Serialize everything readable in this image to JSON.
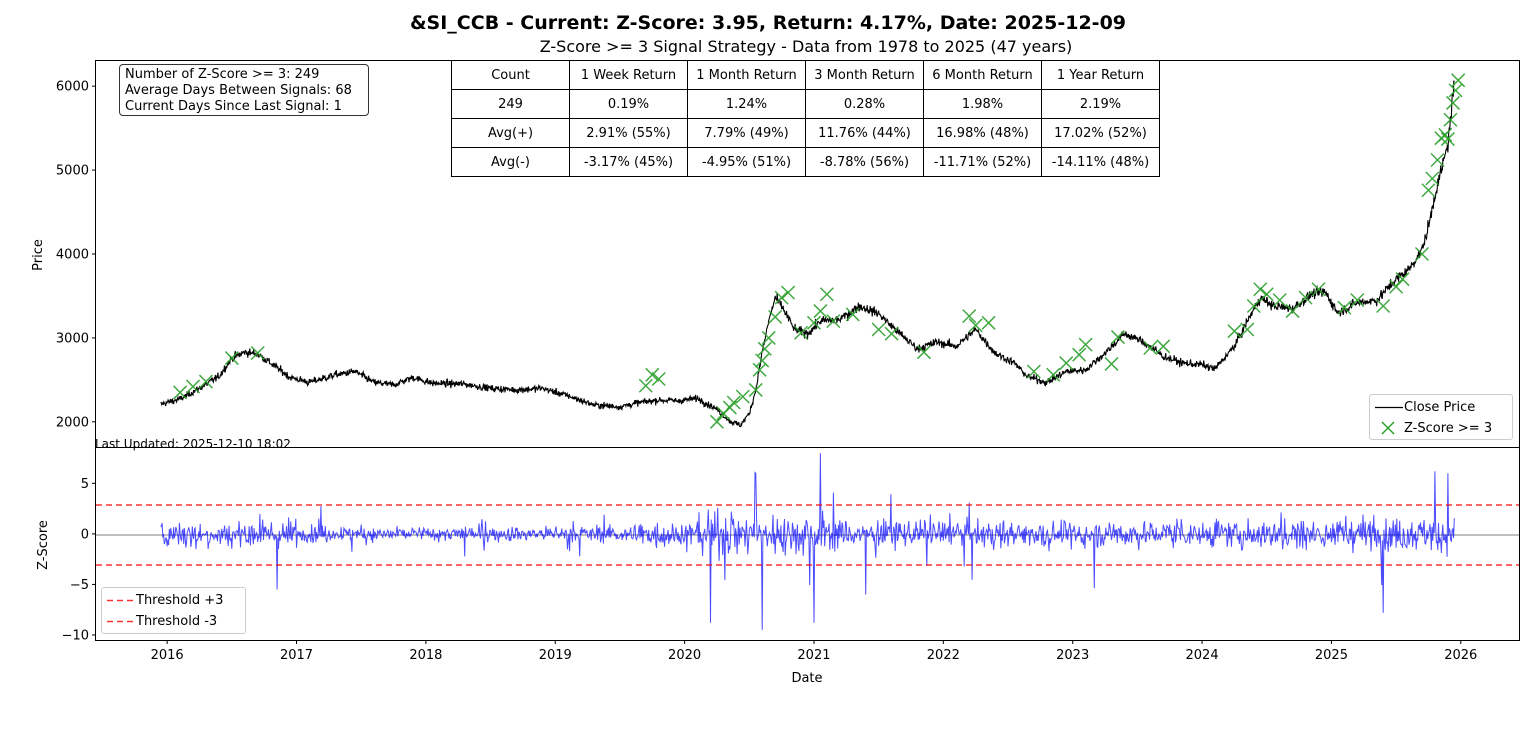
{
  "title": "&SI_CCB - Current: Z-Score: 3.95, Return: 4.17%, Date: 2025-12-09",
  "subtitle": "Z-Score >= 3 Signal Strategy - Data from 1978 to 2025 (47 years)",
  "info_box": {
    "line1": "Number of Z-Score >= 3: 249",
    "line2": "Average Days Between Signals: 68",
    "line3": "Current Days Since Last Signal: 1"
  },
  "stats_table": {
    "header": [
      "Count",
      "1 Week Return",
      "1 Month Return",
      "3 Month Return",
      "6 Month Return",
      "1 Year Return"
    ],
    "rows": [
      [
        "249",
        "0.19%",
        "1.24%",
        "0.28%",
        "1.98%",
        "2.19%"
      ],
      [
        "Avg(+)",
        "2.91% (55%)",
        "7.79% (49%)",
        "11.76% (44%)",
        "16.98% (48%)",
        "17.02% (52%)"
      ],
      [
        "Avg(-)",
        "-3.17% (45%)",
        "-4.95% (51%)",
        "-8.78% (56%)",
        "-11.71% (52%)",
        "-14.11% (48%)"
      ]
    ]
  },
  "last_updated": "Last Updated: 2025-12-10 18:02",
  "chart_data": [
    {
      "type": "line",
      "ylabel": "Price",
      "xlim": [
        2015.45,
        2026.45
      ],
      "ylim": [
        1700,
        6300
      ],
      "yticks": [
        2000,
        3000,
        4000,
        5000,
        6000
      ],
      "series": [
        {
          "name": "Close Price",
          "color": "#000000",
          "points": [
            [
              2015.95,
              2210
            ],
            [
              2016.1,
              2270
            ],
            [
              2016.25,
              2400
            ],
            [
              2016.4,
              2540
            ],
            [
              2016.5,
              2760
            ],
            [
              2016.6,
              2830
            ],
            [
              2016.7,
              2810
            ],
            [
              2016.8,
              2700
            ],
            [
              2016.95,
              2530
            ],
            [
              2017.1,
              2470
            ],
            [
              2017.3,
              2560
            ],
            [
              2017.45,
              2600
            ],
            [
              2017.6,
              2470
            ],
            [
              2017.75,
              2440
            ],
            [
              2017.9,
              2530
            ],
            [
              2018.05,
              2460
            ],
            [
              2018.3,
              2450
            ],
            [
              2018.5,
              2400
            ],
            [
              2018.7,
              2380
            ],
            [
              2018.9,
              2400
            ],
            [
              2019.1,
              2310
            ],
            [
              2019.3,
              2200
            ],
            [
              2019.5,
              2180
            ],
            [
              2019.65,
              2230
            ],
            [
              2019.8,
              2260
            ],
            [
              2019.95,
              2250
            ],
            [
              2020.1,
              2280
            ],
            [
              2020.25,
              2150
            ],
            [
              2020.35,
              2010
            ],
            [
              2020.43,
              1960
            ],
            [
              2020.5,
              2100
            ],
            [
              2020.55,
              2380
            ],
            [
              2020.6,
              2830
            ],
            [
              2020.65,
              3200
            ],
            [
              2020.7,
              3480
            ],
            [
              2020.75,
              3380
            ],
            [
              2020.85,
              3100
            ],
            [
              2020.95,
              3050
            ],
            [
              2021.05,
              3200
            ],
            [
              2021.2,
              3220
            ],
            [
              2021.35,
              3380
            ],
            [
              2021.5,
              3290
            ],
            [
              2021.65,
              3070
            ],
            [
              2021.8,
              2870
            ],
            [
              2021.95,
              2950
            ],
            [
              2022.1,
              2900
            ],
            [
              2022.25,
              3100
            ],
            [
              2022.4,
              2820
            ],
            [
              2022.55,
              2700
            ],
            [
              2022.65,
              2540
            ],
            [
              2022.8,
              2470
            ],
            [
              2022.95,
              2600
            ],
            [
              2023.1,
              2620
            ],
            [
              2023.25,
              2820
            ],
            [
              2023.4,
              3050
            ],
            [
              2023.55,
              2950
            ],
            [
              2023.7,
              2780
            ],
            [
              2023.85,
              2700
            ],
            [
              2024.0,
              2680
            ],
            [
              2024.1,
              2630
            ],
            [
              2024.25,
              2900
            ],
            [
              2024.35,
              3200
            ],
            [
              2024.45,
              3480
            ],
            [
              2024.55,
              3380
            ],
            [
              2024.7,
              3350
            ],
            [
              2024.85,
              3520
            ],
            [
              2024.95,
              3550
            ],
            [
              2025.05,
              3300
            ],
            [
              2025.2,
              3420
            ],
            [
              2025.35,
              3450
            ],
            [
              2025.5,
              3700
            ],
            [
              2025.6,
              3820
            ],
            [
              2025.7,
              4050
            ],
            [
              2025.75,
              4320
            ],
            [
              2025.8,
              4700
            ],
            [
              2025.85,
              5000
            ],
            [
              2025.9,
              5300
            ],
            [
              2025.95,
              6050
            ]
          ]
        },
        {
          "name": "Z-Score >= 3",
          "color": "#2ca02c",
          "points": [
            [
              2016.1,
              2350
            ],
            [
              2016.2,
              2420
            ],
            [
              2016.3,
              2480
            ],
            [
              2016.5,
              2760
            ],
            [
              2016.7,
              2820
            ],
            [
              2019.7,
              2430
            ],
            [
              2019.75,
              2560
            ],
            [
              2019.8,
              2510
            ],
            [
              2020.25,
              2000
            ],
            [
              2020.3,
              2100
            ],
            [
              2020.35,
              2170
            ],
            [
              2020.38,
              2230
            ],
            [
              2020.45,
              2300
            ],
            [
              2020.55,
              2380
            ],
            [
              2020.58,
              2620
            ],
            [
              2020.6,
              2730
            ],
            [
              2020.62,
              2870
            ],
            [
              2020.65,
              3000
            ],
            [
              2020.7,
              3250
            ],
            [
              2020.75,
              3480
            ],
            [
              2020.8,
              3540
            ],
            [
              2020.9,
              3060
            ],
            [
              2021.0,
              3180
            ],
            [
              2021.05,
              3320
            ],
            [
              2021.1,
              3520
            ],
            [
              2021.15,
              3200
            ],
            [
              2021.3,
              3280
            ],
            [
              2021.5,
              3100
            ],
            [
              2021.6,
              3050
            ],
            [
              2021.85,
              2830
            ],
            [
              2022.2,
              3260
            ],
            [
              2022.25,
              3150
            ],
            [
              2022.35,
              3180
            ],
            [
              2022.7,
              2600
            ],
            [
              2022.85,
              2560
            ],
            [
              2022.95,
              2700
            ],
            [
              2023.05,
              2800
            ],
            [
              2023.1,
              2920
            ],
            [
              2023.3,
              2690
            ],
            [
              2023.35,
              3010
            ],
            [
              2023.6,
              2880
            ],
            [
              2023.7,
              2900
            ],
            [
              2024.25,
              3080
            ],
            [
              2024.35,
              3100
            ],
            [
              2024.4,
              3380
            ],
            [
              2024.45,
              3580
            ],
            [
              2024.5,
              3520
            ],
            [
              2024.6,
              3450
            ],
            [
              2024.7,
              3320
            ],
            [
              2024.8,
              3480
            ],
            [
              2024.9,
              3580
            ],
            [
              2025.1,
              3360
            ],
            [
              2025.2,
              3450
            ],
            [
              2025.4,
              3380
            ],
            [
              2025.5,
              3610
            ],
            [
              2025.55,
              3700
            ],
            [
              2025.7,
              4000
            ],
            [
              2025.75,
              4760
            ],
            [
              2025.78,
              4900
            ],
            [
              2025.82,
              5120
            ],
            [
              2025.85,
              5380
            ],
            [
              2025.88,
              5420
            ],
            [
              2025.9,
              5370
            ],
            [
              2025.92,
              5600
            ],
            [
              2025.94,
              5800
            ],
            [
              2025.96,
              5950
            ],
            [
              2025.98,
              6070
            ]
          ]
        }
      ]
    },
    {
      "type": "line",
      "xlabel": "Date",
      "ylabel": "Z-Score",
      "xlim": [
        2015.45,
        2026.45
      ],
      "ylim": [
        -10.5,
        8.5
      ],
      "yticks": [
        -10,
        -5,
        0,
        5
      ],
      "xticks": [
        "2016",
        "2017",
        "2018",
        "2019",
        "2020",
        "2021",
        "2022",
        "2023",
        "2024",
        "2025",
        "2026"
      ],
      "xstart": 2015.95,
      "xend": 2025.95,
      "series": [
        {
          "name": "Z-Score",
          "color": "#0000ff"
        },
        {
          "name": "Threshold +3",
          "value": 3,
          "color": "#ff0000"
        },
        {
          "name": "Threshold -3",
          "value": -3,
          "color": "#ff0000"
        }
      ],
      "notable_spikes": [
        [
          2016.85,
          -5.5
        ],
        [
          2020.2,
          -8.8
        ],
        [
          2020.55,
          6
        ],
        [
          2020.6,
          -9.5
        ],
        [
          2021.05,
          8
        ],
        [
          2021.0,
          -8.8
        ],
        [
          2021.4,
          -6
        ],
        [
          2025.4,
          -7.8
        ],
        [
          2025.8,
          6.2
        ],
        [
          2025.9,
          6
        ]
      ]
    }
  ]
}
